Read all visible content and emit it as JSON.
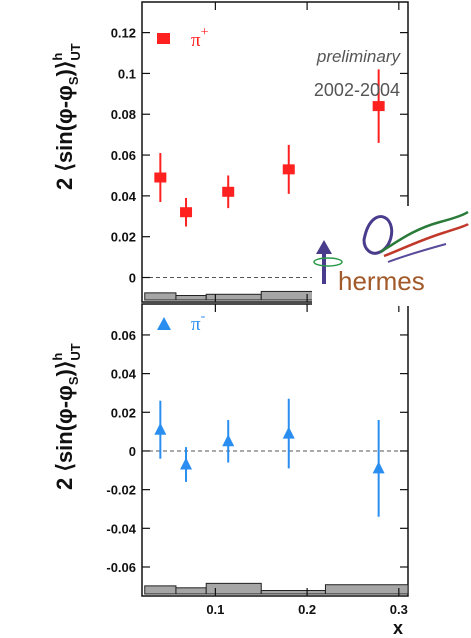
{
  "chart_data": [
    {
      "type": "scatter",
      "panel": "top",
      "ylabel_main": "2 ⟨sin(φ-φ",
      "ylabel_sub": "S",
      "ylabel_end": ")⟩",
      "ylabel_sup": "h",
      "ylabel_sub2": "UT",
      "ylim": [
        -0.012,
        0.135
      ],
      "yticks": [
        0,
        0.02,
        0.04,
        0.06,
        0.08,
        0.1,
        0.12
      ],
      "ytick_labels": [
        "0",
        "0.02",
        "0.04",
        "0.06",
        "0.08",
        "0.1",
        "0.12"
      ],
      "series": [
        {
          "name": "π+",
          "label_base": "π",
          "label_sup": "+",
          "marker": "square",
          "color": "#ff2020",
          "x": [
            0.04,
            0.068,
            0.114,
            0.18,
            0.278
          ],
          "y": [
            0.049,
            0.032,
            0.042,
            0.053,
            0.084
          ],
          "yerr": [
            0.012,
            0.007,
            0.008,
            0.012,
            0.018
          ]
        }
      ],
      "systematic_band": [
        {
          "x0": 0.023,
          "x1": 0.057,
          "h": 0.0035
        },
        {
          "x0": 0.057,
          "x1": 0.09,
          "h": 0.0022
        },
        {
          "x0": 0.09,
          "x1": 0.15,
          "h": 0.0028
        },
        {
          "x0": 0.15,
          "x1": 0.22,
          "h": 0.0042
        },
        {
          "x0": 0.22,
          "x1": 0.4,
          "h": 0.0052
        }
      ],
      "annotations": [
        "preliminary",
        "2002-2004"
      ]
    },
    {
      "type": "scatter",
      "panel": "bottom",
      "ylabel_main": "2 ⟨sin(φ-φ",
      "ylabel_sub": "S",
      "ylabel_end": ")⟩",
      "ylabel_sup": "h",
      "ylabel_sub2": "UT",
      "xlabel": "x",
      "xlim": [
        0.02,
        0.31
      ],
      "xticks": [
        0.1,
        0.2,
        0.3
      ],
      "xtick_labels": [
        "0.1",
        "0.2",
        "0.3"
      ],
      "ylim": [
        -0.075,
        0.076
      ],
      "yticks": [
        -0.06,
        -0.04,
        -0.02,
        0,
        0.02,
        0.04,
        0.06
      ],
      "ytick_labels": [
        "-0.06",
        "-0.04",
        "-0.02",
        "0",
        "0.02",
        "0.04",
        "0.06"
      ],
      "series": [
        {
          "name": "π-",
          "label_base": "π",
          "label_sup": "-",
          "marker": "triangle",
          "color": "#2a8ef0",
          "x": [
            0.04,
            0.068,
            0.114,
            0.18,
            0.278
          ],
          "y": [
            0.011,
            -0.007,
            0.005,
            0.009,
            -0.009
          ],
          "yerr": [
            0.015,
            0.009,
            0.011,
            0.018,
            0.025
          ]
        }
      ],
      "systematic_band": [
        {
          "x0": 0.023,
          "x1": 0.057,
          "h": 0.0042
        },
        {
          "x0": 0.057,
          "x1": 0.09,
          "h": 0.0032
        },
        {
          "x0": 0.09,
          "x1": 0.15,
          "h": 0.0055
        },
        {
          "x0": 0.15,
          "x1": 0.22,
          "h": 0.0018
        },
        {
          "x0": 0.22,
          "x1": 0.4,
          "h": 0.0048
        }
      ]
    }
  ],
  "logo": {
    "text": "hermes",
    "icon": "hermes-winged-logo-icon"
  },
  "colors": {
    "pi_plus": "#ff2020",
    "pi_minus": "#2a8ef0",
    "band": "#a6a6a6",
    "logo_text": "#a35a2a"
  }
}
